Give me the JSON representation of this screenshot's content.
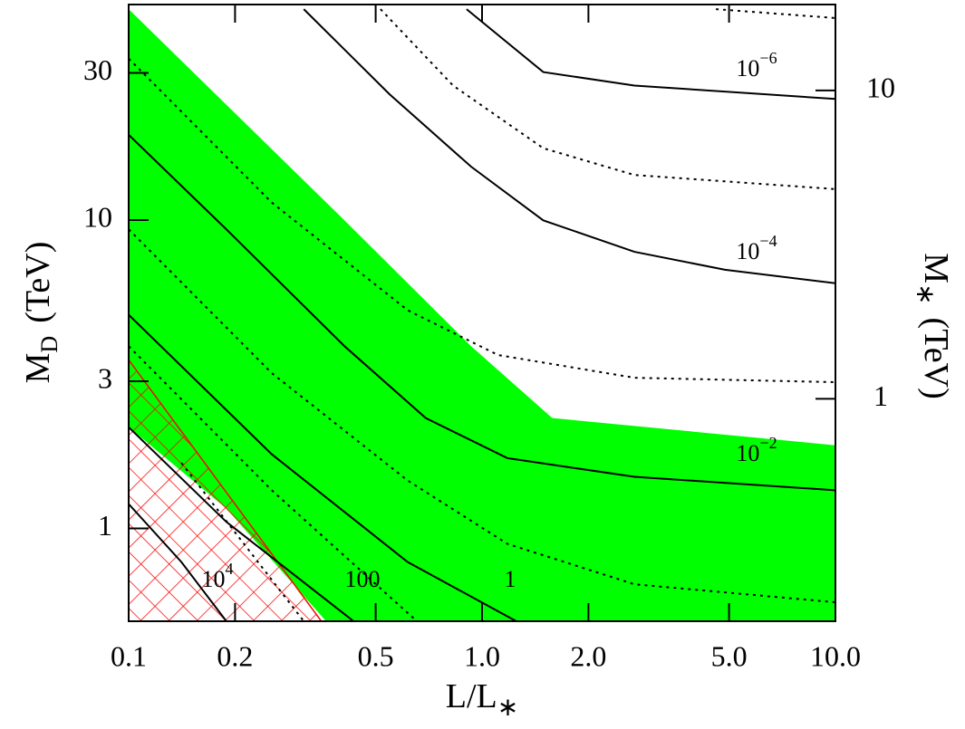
{
  "chart_data": {
    "type": "contour",
    "xlabel": {
      "text": "L/L",
      "sub": "∗"
    },
    "ylabel": {
      "text": "M",
      "sub": "D",
      "unit": "(TeV)"
    },
    "y2label": {
      "text": "M",
      "sub": "∗",
      "unit": "(TeV)"
    },
    "xlog": true,
    "ylog": true,
    "xlim": [
      0.1,
      10
    ],
    "ylim": [
      0.5,
      50
    ],
    "y2lim": [
      0.19,
      19
    ],
    "xticks": [
      0.1,
      0.2,
      0.5,
      {
        "value": 1,
        "label": "1.0"
      },
      {
        "value": 2,
        "label": "2.0"
      },
      {
        "value": 5,
        "label": "5.0"
      },
      {
        "value": 10,
        "label": "10.0"
      }
    ],
    "yticks": [
      1,
      3,
      10,
      30
    ],
    "y2ticks": [
      1,
      10
    ],
    "regions": [
      {
        "fill": "#00ff00",
        "x": [
          0.1,
          0.408,
          0.931,
          1.58,
          10,
          10,
          0.362,
          0.189,
          0.1
        ],
        "y": [
          48.3,
          9.98,
          3.9,
          2.28,
          1.86,
          0.5,
          0.5,
          1.16,
          2.13
        ]
      },
      {
        "hatch": "#ff0000",
        "x": [
          0.1,
          0.351,
          0.1
        ],
        "y": [
          3.52,
          0.5,
          0.5
        ]
      }
    ],
    "series": [
      {
        "name": "10",
        "exponent": "−6",
        "style": "solid",
        "x": [
          0.904,
          1.49,
          2.7,
          10
        ],
        "y": [
          48.3,
          30.2,
          27.3,
          24.7
        ]
      },
      {
        "name": "10",
        "exponent": "−4",
        "style": "solid",
        "x": [
          0.313,
          0.547,
          0.931,
          1.49,
          2.7,
          4.87,
          10
        ],
        "y": [
          48.3,
          25.6,
          14.9,
          9.98,
          7.89,
          6.9,
          6.24
        ]
      },
      {
        "name": "10",
        "exponent": "−2",
        "style": "solid",
        "x": [
          0.1,
          0.189,
          0.408,
          0.693,
          1.18,
          2.7,
          10
        ],
        "y": [
          18.9,
          9.33,
          3.9,
          2.28,
          1.69,
          1.47,
          1.33
        ]
      },
      {
        "name": "1",
        "style": "solid",
        "x": [
          0.1,
          0.254,
          0.616,
          1.25
        ],
        "y": [
          4.93,
          1.74,
          0.778,
          0.5
        ]
      },
      {
        "name": "100",
        "style": "solid",
        "x": [
          0.1,
          0.189,
          0.433
        ],
        "y": [
          2.13,
          1.05,
          0.5
        ]
      },
      {
        "name": "10",
        "exponent": "4",
        "style": "solid",
        "x": [
          0.1,
          0.141,
          0.189
        ],
        "y": [
          1.2,
          0.778,
          0.5
        ]
      },
      {
        "style": "dotted",
        "x": [
          4.59,
          10
        ],
        "y": [
          48.3,
          45.2
        ]
      },
      {
        "style": "dotted",
        "x": [
          0.516,
          0.828,
          1.49,
          2.7,
          10
        ],
        "y": [
          48.3,
          27.3,
          17.1,
          14.0,
          12.6
        ]
      },
      {
        "style": "dotted",
        "x": [
          0.1,
          0.254,
          0.616,
          1.11,
          2.7,
          10
        ],
        "y": [
          33.4,
          11.4,
          5.1,
          3.65,
          3.08,
          2.98
        ]
      },
      {
        "style": "dotted",
        "x": [
          0.1,
          0.254,
          0.616,
          1.18,
          2.7,
          10
        ],
        "y": [
          9.33,
          3.19,
          1.43,
          0.891,
          0.659,
          0.576
        ]
      },
      {
        "style": "dotted",
        "x": [
          0.1,
          0.254,
          0.654
        ],
        "y": [
          3.9,
          1.33,
          0.5
        ]
      },
      {
        "style": "dotted",
        "x": [
          0.141,
          0.313
        ],
        "y": [
          1.63,
          0.5
        ]
      }
    ]
  }
}
